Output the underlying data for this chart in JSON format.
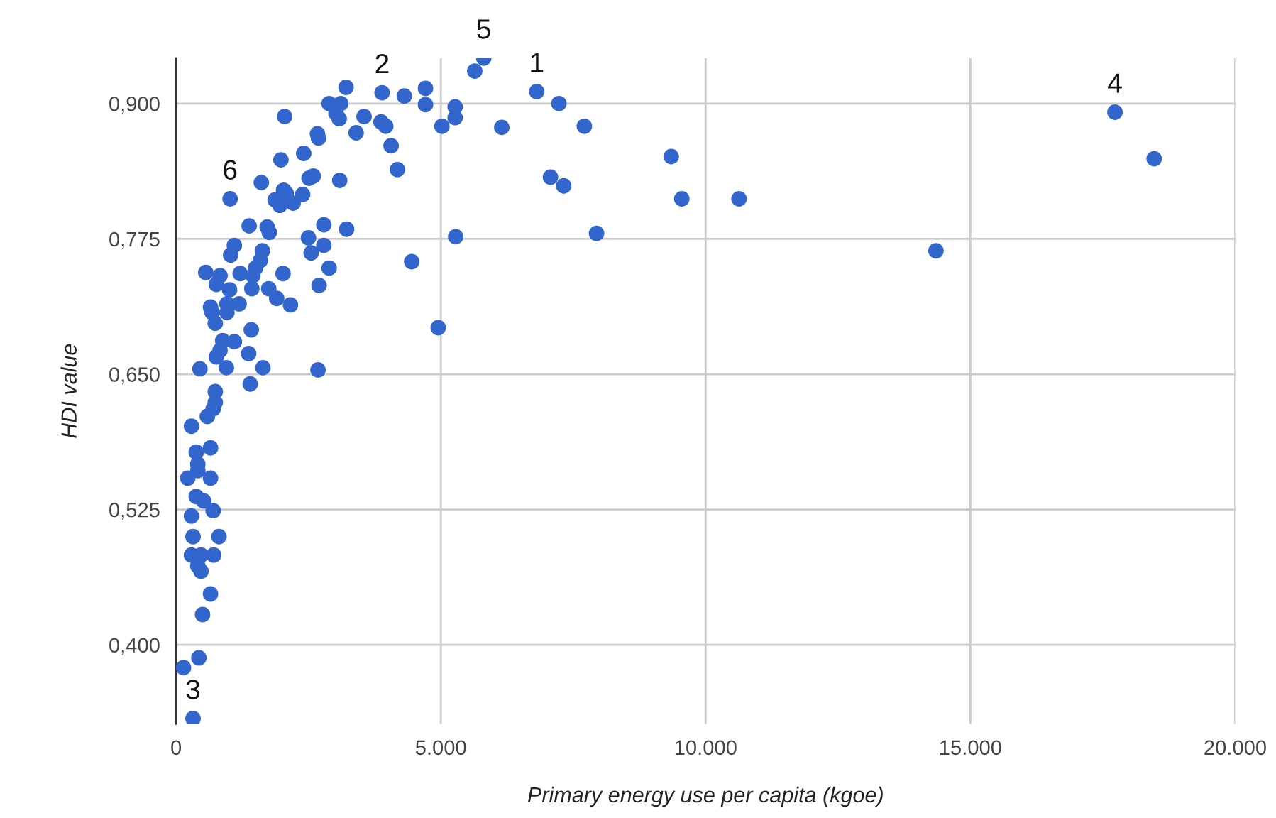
{
  "chart_data": {
    "type": "scatter",
    "xlabel": "Primary energy use per capita (kgoe)",
    "ylabel": "HDI value",
    "xlim": [
      0,
      20000
    ],
    "ylim": [
      0.327,
      0.942
    ],
    "xticks": [
      0,
      {
        "value": 5000,
        "label": "5.000"
      },
      {
        "value": 10000,
        "label": "10.000"
      },
      {
        "value": 15000,
        "label": "15.000"
      },
      {
        "value": 20000,
        "label": "20.000"
      }
    ],
    "yticks": [
      {
        "value": 0.4,
        "label": "0,400"
      },
      {
        "value": 0.525,
        "label": "0,525"
      },
      {
        "value": 0.65,
        "label": "0,650"
      },
      {
        "value": 0.775,
        "label": "0,775"
      },
      {
        "value": 0.9,
        "label": "0,900"
      }
    ],
    "grid": true,
    "marker": "circle",
    "series": [
      {
        "color": "#3366cc",
        "x": [
          5810,
          5640,
          6810,
          7230,
          7710,
          6150,
          5270,
          5270,
          5020,
          4710,
          4710,
          9350,
          7070,
          7320,
          9550,
          10630,
          7940,
          5280,
          4950,
          17730,
          18470,
          14350,
          3210,
          3890,
          4310,
          2890,
          3110,
          3020,
          3080,
          3550,
          3870,
          3960,
          3400,
          2670,
          2690,
          2050,
          4060,
          4180,
          2410,
          1980,
          1610,
          2510,
          2590,
          3090,
          1020,
          2030,
          1870,
          2080,
          2210,
          1960,
          2390,
          1380,
          1720,
          1760,
          2790,
          3220,
          2500,
          2790,
          2550,
          1100,
          1030,
          1630,
          1590,
          1500,
          4450,
          2890,
          560,
          830,
          760,
          1210,
          1450,
          2020,
          1430,
          1010,
          2700,
          1750,
          1900,
          2160,
          650,
          960,
          1190,
          680,
          960,
          740,
          1420,
          880,
          1100,
          830,
          1370,
          760,
          450,
          950,
          1640,
          2680,
          1400,
          740,
          740,
          700,
          590,
          290,
          650,
          380,
          410,
          220,
          650,
          410,
          380,
          520,
          700,
          290,
          320,
          810,
          290,
          470,
          710,
          410,
          470,
          650,
          500,
          430,
          140,
          320
        ],
        "values": [
          0.942,
          0.93,
          0.911,
          0.9,
          0.879,
          0.878,
          0.897,
          0.887,
          0.879,
          0.914,
          0.899,
          0.851,
          0.832,
          0.824,
          0.812,
          0.812,
          0.78,
          0.777,
          0.693,
          0.892,
          0.849,
          0.764,
          0.915,
          0.91,
          0.907,
          0.9,
          0.9,
          0.891,
          0.886,
          0.888,
          0.883,
          0.879,
          0.873,
          0.872,
          0.868,
          0.888,
          0.861,
          0.839,
          0.854,
          0.848,
          0.827,
          0.831,
          0.833,
          0.829,
          0.812,
          0.82,
          0.811,
          0.817,
          0.808,
          0.806,
          0.816,
          0.787,
          0.786,
          0.781,
          0.788,
          0.784,
          0.776,
          0.769,
          0.762,
          0.769,
          0.76,
          0.764,
          0.755,
          0.748,
          0.754,
          0.748,
          0.744,
          0.741,
          0.733,
          0.743,
          0.741,
          0.743,
          0.729,
          0.728,
          0.732,
          0.729,
          0.72,
          0.714,
          0.712,
          0.715,
          0.715,
          0.707,
          0.707,
          0.697,
          0.691,
          0.681,
          0.68,
          0.672,
          0.669,
          0.666,
          0.655,
          0.656,
          0.656,
          0.654,
          0.641,
          0.634,
          0.624,
          0.618,
          0.611,
          0.602,
          0.582,
          0.578,
          0.567,
          0.554,
          0.554,
          0.561,
          0.537,
          0.533,
          0.524,
          0.519,
          0.5,
          0.5,
          0.483,
          0.483,
          0.483,
          0.473,
          0.468,
          0.447,
          0.428,
          0.388,
          0.379,
          0.332
        ]
      }
    ],
    "annotations": [
      {
        "text": "1",
        "x": 6810,
        "y": 0.911
      },
      {
        "text": "2",
        "x": 3890,
        "y": 0.91
      },
      {
        "text": "3",
        "x": 320,
        "y": 0.332
      },
      {
        "text": "4",
        "x": 17730,
        "y": 0.892
      },
      {
        "text": "5",
        "x": 5810,
        "y": 0.942
      },
      {
        "text": "6",
        "x": 1020,
        "y": 0.812
      }
    ]
  }
}
